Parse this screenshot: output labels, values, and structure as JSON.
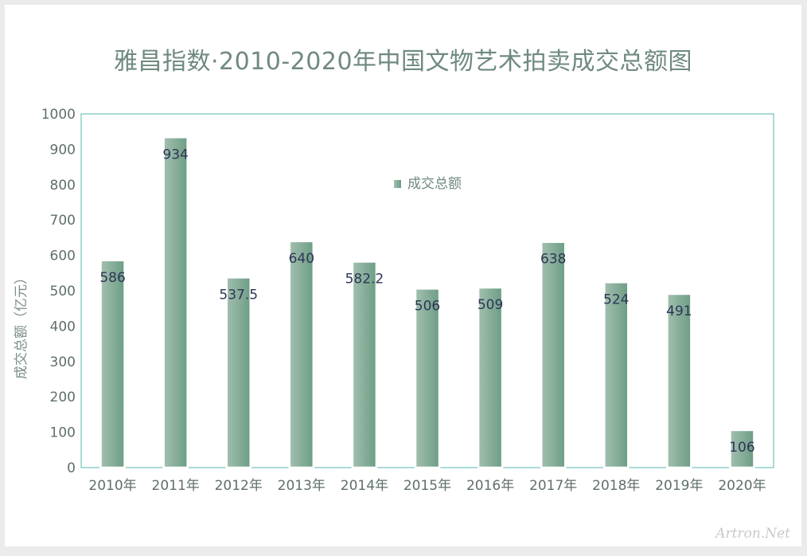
{
  "chart_data": {
    "type": "bar",
    "title": "雅昌指数·2010-2020年中国文物艺术拍卖成交总额图",
    "ylabel": "成交总额（亿元）",
    "xlabel": "",
    "categories": [
      "2010年",
      "2011年",
      "2012年",
      "2013年",
      "2014年",
      "2015年",
      "2016年",
      "2017年",
      "2018年",
      "2019年",
      "2020年"
    ],
    "series": [
      {
        "name": "成交总额",
        "values": [
          586,
          934,
          537.5,
          640,
          582.2,
          506,
          509,
          638,
          524,
          491,
          106
        ],
        "labels": [
          "586",
          "934",
          "537.5",
          "640",
          "582.2",
          "506",
          "509",
          "638",
          "524",
          "491",
          "106"
        ]
      }
    ],
    "ylim": [
      0,
      1000
    ],
    "yticks": [
      "0",
      "100",
      "200",
      "300",
      "400",
      "500",
      "600",
      "700",
      "800",
      "900",
      "1000"
    ],
    "legend_position": "top-center",
    "grid": false,
    "colors": {
      "bar_light": "#a3bfb0",
      "bar_dark": "#6c9d84",
      "frame": "#8fcfc9",
      "label": "#2e3556",
      "tick": "#5f6f69",
      "title": "#6f8a7e"
    }
  },
  "watermark": "Artron.Net"
}
